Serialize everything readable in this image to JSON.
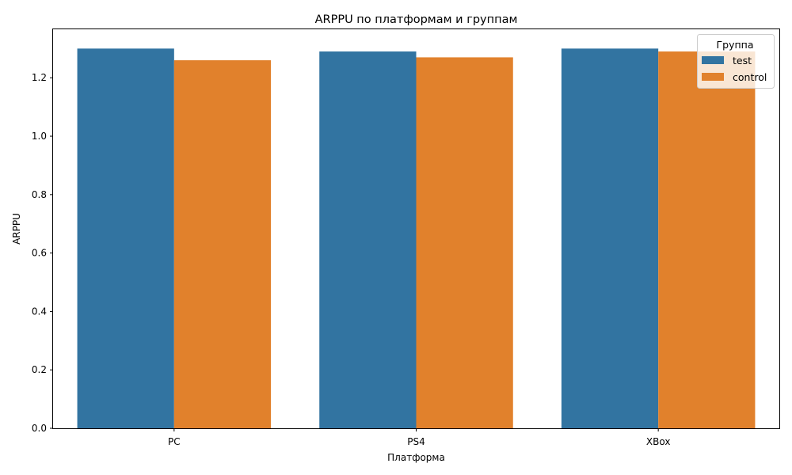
{
  "chart_data": {
    "type": "bar",
    "title": "ARPPU по платформам и группам",
    "xlabel": "Платформа",
    "ylabel": "ARPPU",
    "categories": [
      "PC",
      "PS4",
      "XBox"
    ],
    "series": [
      {
        "name": "test",
        "color": "#3274a1",
        "values": [
          1.3,
          1.29,
          1.3
        ]
      },
      {
        "name": "control",
        "color": "#e1812c",
        "values": [
          1.26,
          1.27,
          1.29
        ]
      }
    ],
    "ylim": [
      0,
      1.366
    ],
    "yticks": [
      "0.0",
      "0.2",
      "0.4",
      "0.6",
      "0.8",
      "1.0",
      "1.2"
    ],
    "grid": false,
    "legend": {
      "title": "Группа",
      "position": "top-right"
    }
  }
}
